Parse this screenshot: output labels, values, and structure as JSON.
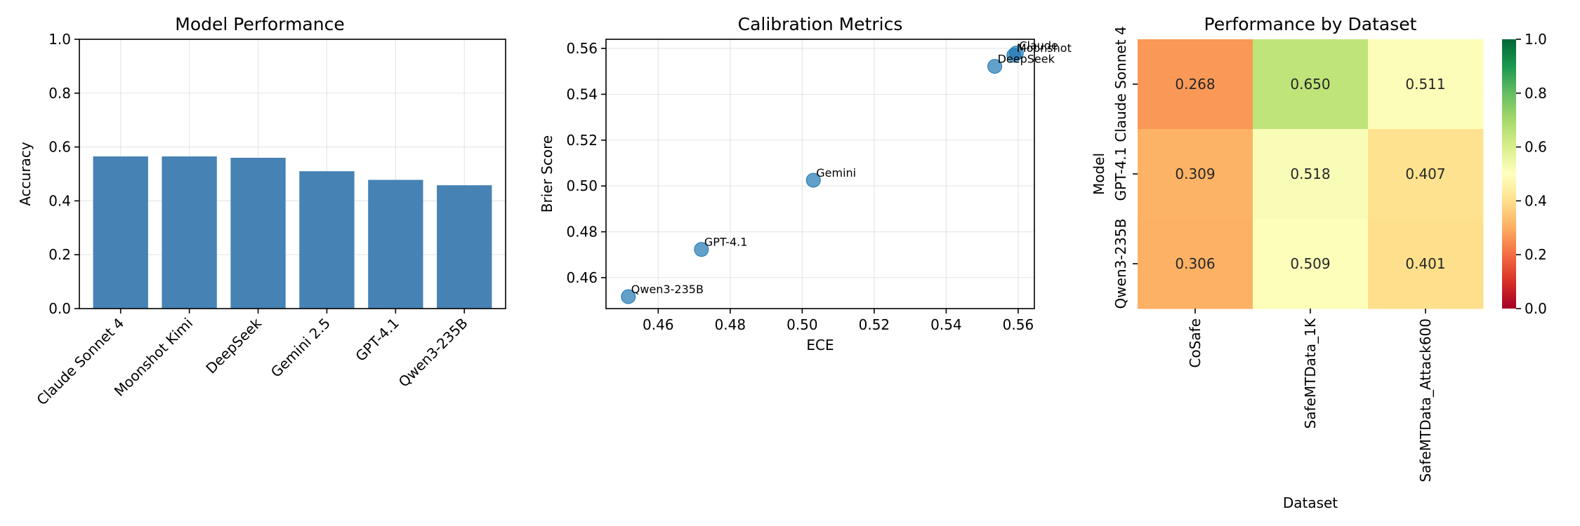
{
  "chart_data": [
    {
      "type": "bar",
      "title": "Model Performance",
      "xlabel": "",
      "ylabel": "Accuracy",
      "categories": [
        "Claude Sonnet 4",
        "Moonshot Kimi",
        "DeepSeek",
        "Gemini 2.5",
        "GPT-4.1",
        "Qwen3-235B"
      ],
      "values": [
        0.565,
        0.565,
        0.56,
        0.51,
        0.478,
        0.458
      ],
      "ylim": [
        0,
        1
      ],
      "yticks": [
        "0.0",
        "0.2",
        "0.4",
        "0.6",
        "0.8",
        "1.0"
      ],
      "grid": true,
      "color": "#4682b4"
    },
    {
      "type": "scatter",
      "title": "Calibration Metrics",
      "xlabel": "ECE",
      "ylabel": "Brier Score",
      "points": [
        {
          "label": "Claude",
          "x": 0.5595,
          "y": 0.558
        },
        {
          "label": "Moonshot",
          "x": 0.5588,
          "y": 0.557
        },
        {
          "label": "DeepSeek",
          "x": 0.5535,
          "y": 0.5522
        },
        {
          "label": "Gemini",
          "x": 0.5031,
          "y": 0.5025
        },
        {
          "label": "GPT-4.1",
          "x": 0.472,
          "y": 0.4723
        },
        {
          "label": "Qwen3-235B",
          "x": 0.4517,
          "y": 0.4517
        }
      ],
      "xlim": [
        0.4455,
        0.5645
      ],
      "ylim": [
        0.4465,
        0.564
      ],
      "xticks": [
        "0.46",
        "0.48",
        "0.50",
        "0.52",
        "0.54",
        "0.56"
      ],
      "yticks": [
        "0.46",
        "0.48",
        "0.50",
        "0.52",
        "0.54",
        "0.56"
      ],
      "grid": true,
      "color": "#1f77b4"
    },
    {
      "type": "heatmap",
      "title": "Performance by Dataset",
      "xlabel": "Dataset",
      "ylabel": "Model",
      "rows": [
        "Claude Sonnet 4",
        "GPT-4.1",
        "Qwen3-235B"
      ],
      "columns": [
        "CoSafe",
        "SafeMTData_1K",
        "SafeMTData_Attack600"
      ],
      "values": [
        [
          0.268,
          0.65,
          0.511
        ],
        [
          0.309,
          0.518,
          0.407
        ],
        [
          0.306,
          0.509,
          0.401
        ]
      ],
      "labels": [
        [
          "0.268",
          "0.650",
          "0.511"
        ],
        [
          "0.309",
          "0.518",
          "0.407"
        ],
        [
          "0.306",
          "0.509",
          "0.401"
        ]
      ],
      "colormap": "RdYlGn",
      "vmin": 0,
      "vmax": 1,
      "colorbar_ticks": [
        "0.0",
        "0.2",
        "0.4",
        "0.6",
        "0.8",
        "1.0"
      ]
    }
  ]
}
